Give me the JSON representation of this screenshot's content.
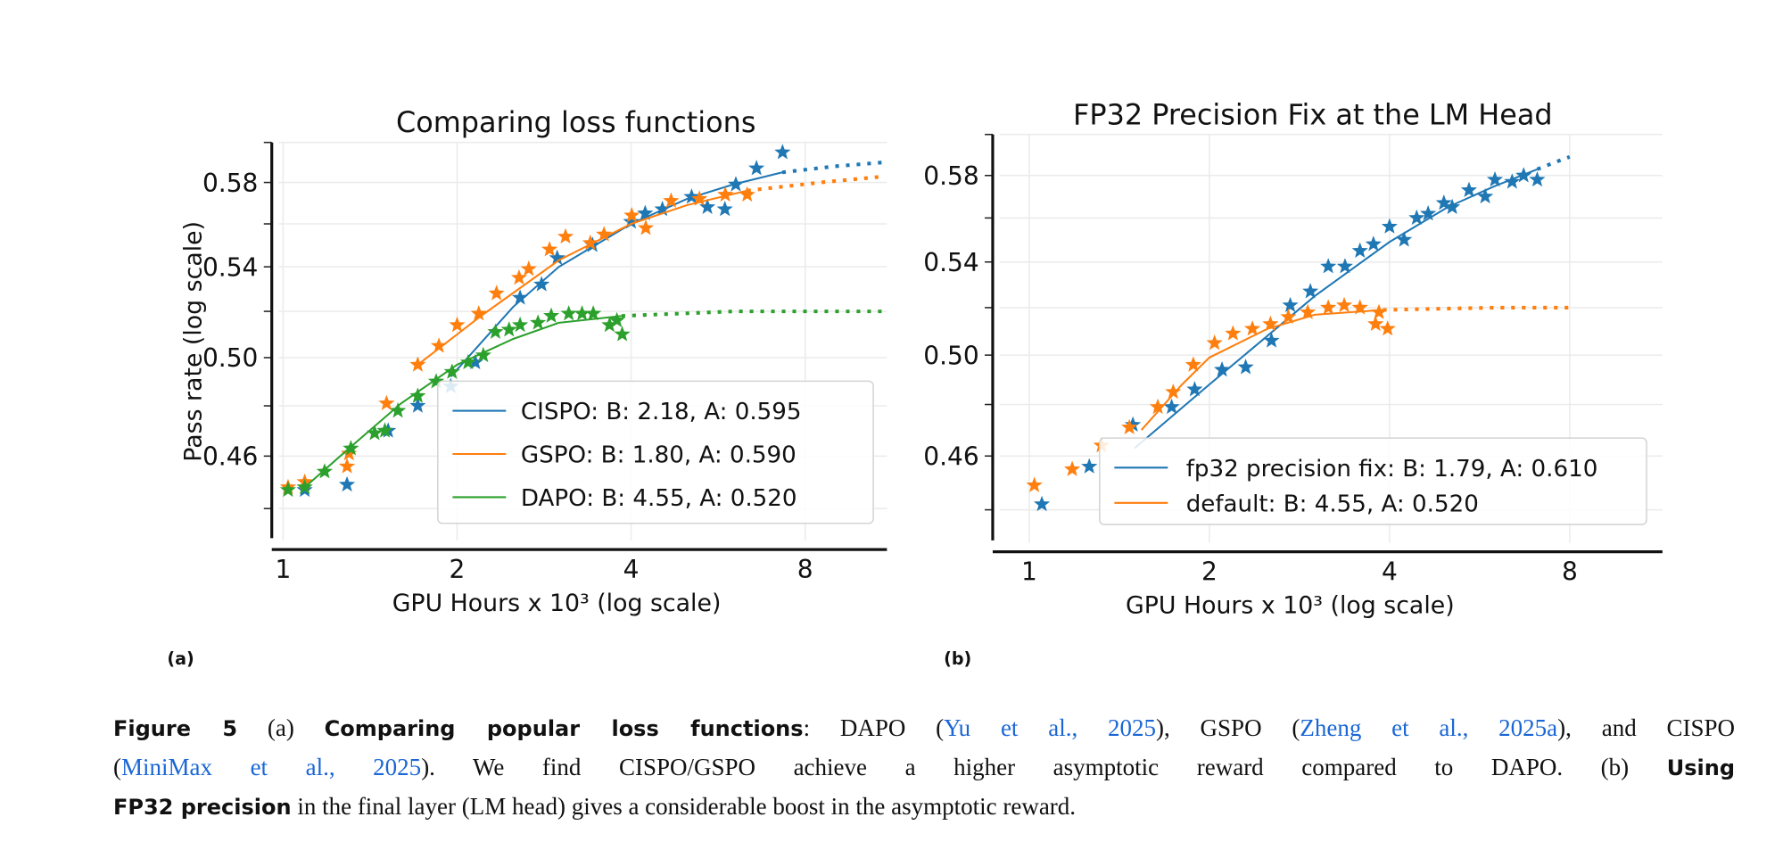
{
  "colors": {
    "blue": "#1f77b4",
    "orange": "#ff7f0e",
    "green": "#2ca02c"
  },
  "panel_labels": [
    "(a)",
    "(b)"
  ],
  "chart_data": [
    {
      "type": "scatter",
      "title": "Comparing loss functions",
      "xlabel": "GPU Hours x 10³ (log scale)",
      "ylabel": "Pass rate (log scale)",
      "xscale": "log",
      "yscale": "log",
      "xlim": [
        0.956,
        11.08
      ],
      "ylim": [
        0.425,
        0.6
      ],
      "xticks": [
        1,
        2,
        4,
        8
      ],
      "xtick_labels": [
        "1",
        "2",
        "4",
        "8"
      ],
      "yticks": [
        0.46,
        0.5,
        0.54,
        0.58
      ],
      "ytick_labels": [
        "0.46",
        "0.50",
        "0.54",
        "0.58"
      ],
      "grid": true,
      "legend_position": "lower-right",
      "series": [
        {
          "name": "CISPO",
          "legend": "CISPO: B: 2.18, A: 0.595",
          "color": "#1f77b4",
          "x": [
            1.09,
            1.29,
            1.52,
            1.71,
            1.95,
            2.15,
            2.57,
            2.8,
            2.98,
            3.43,
            4.0,
            4.23,
            4.53,
            5.09,
            5.42,
            5.81,
            6.07,
            6.59,
            7.31
          ],
          "y": [
            0.447,
            0.449,
            0.47,
            0.48,
            0.488,
            0.498,
            0.526,
            0.532,
            0.544,
            0.55,
            0.561,
            0.565,
            0.567,
            0.573,
            0.568,
            0.567,
            0.579,
            0.587,
            0.595
          ],
          "fit": {
            "x": [
              1.95,
              2.5,
              3,
              4,
              5,
              6,
              7.3
            ],
            "y": [
              0.492,
              0.522,
              0.54,
              0.56,
              0.572,
              0.579,
              0.585
            ]
          },
          "extrapolation": {
            "x": [
              7.3,
              9,
              11.0
            ],
            "y": [
              0.585,
              0.588,
              0.59
            ]
          }
        },
        {
          "name": "GSPO",
          "legend": "GSPO: B: 1.80, A: 0.590",
          "color": "#ff7f0e",
          "x": [
            1.02,
            1.09,
            1.29,
            1.3,
            1.51,
            1.71,
            1.86,
            2.0,
            2.18,
            2.34,
            2.56,
            2.66,
            2.89,
            3.08,
            3.4,
            3.59,
            4.01,
            4.24,
            4.69,
            5.25,
            5.82,
            6.35
          ],
          "y": [
            0.448,
            0.45,
            0.456,
            0.461,
            0.481,
            0.497,
            0.505,
            0.514,
            0.519,
            0.528,
            0.535,
            0.539,
            0.548,
            0.554,
            0.551,
            0.555,
            0.564,
            0.558,
            0.571,
            0.572,
            0.574,
            0.574
          ],
          "fit": {
            "x": [
              1.71,
              2.2,
              3,
              4,
              5,
              6.35
            ],
            "y": [
              0.497,
              0.518,
              0.543,
              0.56,
              0.569,
              0.576
            ]
          },
          "extrapolation": {
            "x": [
              6.35,
              8.5,
              11.0
            ],
            "y": [
              0.576,
              0.58,
              0.583
            ]
          }
        },
        {
          "name": "DAPO",
          "legend": "DAPO: B: 4.55, A: 0.520",
          "color": "#2ca02c",
          "x": [
            1.02,
            1.09,
            1.18,
            1.31,
            1.44,
            1.5,
            1.58,
            1.71,
            1.84,
            1.96,
            2.09,
            2.22,
            2.33,
            2.46,
            2.57,
            2.76,
            2.91,
            3.12,
            3.29,
            3.44,
            3.67,
            3.86,
            3.78
          ],
          "y": [
            0.447,
            0.448,
            0.454,
            0.463,
            0.469,
            0.47,
            0.478,
            0.484,
            0.49,
            0.494,
            0.498,
            0.501,
            0.511,
            0.512,
            0.514,
            0.515,
            0.518,
            0.519,
            0.519,
            0.519,
            0.514,
            0.51,
            0.516
          ],
          "fit": {
            "x": [
              1.09,
              1.3,
              1.6,
              2,
              2.5,
              3,
              3.85
            ],
            "y": [
              0.448,
              0.463,
              0.481,
              0.497,
              0.508,
              0.515,
              0.518
            ]
          },
          "extrapolation": {
            "x": [
              3.85,
              6,
              11.0
            ],
            "y": [
              0.518,
              0.52,
              0.52
            ]
          }
        }
      ]
    },
    {
      "type": "scatter",
      "title": "FP32 Precision Fix at the LM Head",
      "xlabel": "GPU Hours x 10³ (log scale)",
      "ylabel": "",
      "xscale": "log",
      "yscale": "log",
      "xlim": [
        0.869,
        11.43
      ],
      "ylim": [
        0.425,
        0.6
      ],
      "xticks": [
        1,
        2,
        4,
        8
      ],
      "xtick_labels": [
        "1",
        "2",
        "4",
        "8"
      ],
      "yticks": [
        0.46,
        0.5,
        0.54,
        0.58
      ],
      "ytick_labels": [
        "0.46",
        "0.50",
        "0.54",
        "0.58"
      ],
      "grid": true,
      "legend_position": "lower-right",
      "series": [
        {
          "name": "fp32 precision fix",
          "legend": "fp32 precision fix: B: 1.79, A: 0.610",
          "color": "#1f77b4",
          "x": [
            1.05,
            1.26,
            1.49,
            1.73,
            1.89,
            2.1,
            2.3,
            2.54,
            2.73,
            2.95,
            3.16,
            3.37,
            3.57,
            3.76,
            4.0,
            4.23,
            4.44,
            4.64,
            4.93,
            5.09,
            5.43,
            5.78,
            6.0,
            6.41,
            6.7,
            7.06
          ],
          "y": [
            0.442,
            0.456,
            0.472,
            0.479,
            0.486,
            0.494,
            0.495,
            0.506,
            0.521,
            0.527,
            0.538,
            0.538,
            0.545,
            0.548,
            0.556,
            0.55,
            0.56,
            0.562,
            0.567,
            0.565,
            0.573,
            0.57,
            0.578,
            0.577,
            0.58,
            0.578
          ],
          "fit": {
            "x": [
              1.5,
              2,
              2.5,
              3,
              4,
              5,
              6,
              7.06
            ],
            "y": [
              0.463,
              0.488,
              0.508,
              0.525,
              0.549,
              0.565,
              0.575,
              0.583
            ]
          },
          "extrapolation": {
            "x": [
              7.06,
              7.5,
              8.0
            ],
            "y": [
              0.583,
              0.586,
              0.589
            ]
          }
        },
        {
          "name": "default",
          "legend": "default: B: 4.55, A: 0.520",
          "color": "#ff7f0e",
          "x": [
            1.02,
            1.18,
            1.32,
            1.47,
            1.64,
            1.74,
            1.88,
            2.04,
            2.19,
            2.36,
            2.53,
            2.71,
            2.92,
            3.16,
            3.36,
            3.57,
            3.79,
            3.97,
            3.84
          ],
          "y": [
            0.449,
            0.455,
            0.464,
            0.471,
            0.479,
            0.485,
            0.496,
            0.505,
            0.509,
            0.511,
            0.513,
            0.516,
            0.518,
            0.52,
            0.521,
            0.52,
            0.513,
            0.511,
            0.518
          ],
          "fit": {
            "x": [
              1.54,
              1.8,
              2,
              2.5,
              3,
              3.9
            ],
            "y": [
              0.47,
              0.488,
              0.499,
              0.511,
              0.517,
              0.519
            ]
          },
          "extrapolation": {
            "x": [
              3.9,
              6,
              8.0
            ],
            "y": [
              0.519,
              0.52,
              0.52
            ]
          }
        }
      ]
    }
  ],
  "caption": {
    "line1": {
      "fig": "Figure 5",
      "a": " (a) ",
      "a_title": "Comparing popular loss functions",
      "t1": ":  DAPO (",
      "ref1": "Yu et al., 2025",
      "t2": "), GSPO (",
      "ref2": "Zheng et al., 2025a",
      "t3": "), and CISPO"
    },
    "line2": {
      "t0": "(",
      "ref3": "MiniMax et al., 2025",
      "t1": "). We find CISPO/GSPO achieve a higher asymptotic reward compared to DAPO. (b) ",
      "b_title": "Using"
    },
    "line3": {
      "b_title": "FP32 precision",
      "t1": " in the final layer (LM head) gives a considerable boost in the asymptotic reward."
    }
  }
}
